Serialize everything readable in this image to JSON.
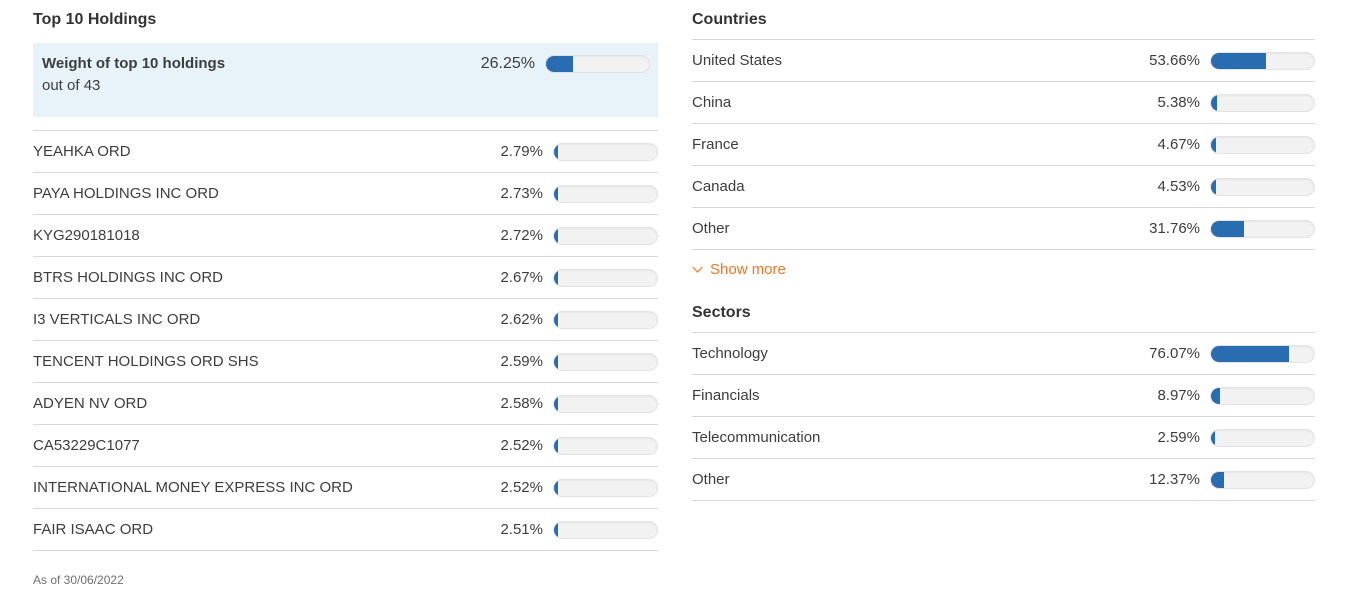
{
  "colors": {
    "bar_fill": "#2a6cb0",
    "bar_track": "#f2f2f2",
    "highlight_bg": "#e7f3f9",
    "link_orange": "#e87722",
    "divider": "#d8d8d8",
    "text_dark": "#3d3d3d"
  },
  "holdings": {
    "title": "Top 10 Holdings",
    "summary": {
      "label": "Weight of top 10 holdings",
      "sublabel": "out of 43",
      "value": "26.25%",
      "pct": 26.25
    },
    "rows": [
      {
        "label": "YEAHKA ORD",
        "value": "2.79%",
        "pct": 2.79
      },
      {
        "label": "PAYA HOLDINGS INC ORD",
        "value": "2.73%",
        "pct": 2.73
      },
      {
        "label": "KYG290181018",
        "value": "2.72%",
        "pct": 2.72
      },
      {
        "label": "BTRS HOLDINGS INC ORD",
        "value": "2.67%",
        "pct": 2.67
      },
      {
        "label": "I3 VERTICALS INC ORD",
        "value": "2.62%",
        "pct": 2.62
      },
      {
        "label": "TENCENT HOLDINGS ORD SHS",
        "value": "2.59%",
        "pct": 2.59
      },
      {
        "label": "ADYEN NV ORD",
        "value": "2.58%",
        "pct": 2.58
      },
      {
        "label": "CA53229C1077",
        "value": "2.52%",
        "pct": 2.52
      },
      {
        "label": "INTERNATIONAL MONEY EXPRESS INC ORD",
        "value": "2.52%",
        "pct": 2.52
      },
      {
        "label": "FAIR ISAAC ORD",
        "value": "2.51%",
        "pct": 2.51
      }
    ],
    "as_of": "As of 30/06/2022"
  },
  "countries": {
    "title": "Countries",
    "rows": [
      {
        "label": "United States",
        "value": "53.66%",
        "pct": 53.66
      },
      {
        "label": "China",
        "value": "5.38%",
        "pct": 5.38
      },
      {
        "label": "France",
        "value": "4.67%",
        "pct": 4.67
      },
      {
        "label": "Canada",
        "value": "4.53%",
        "pct": 4.53
      },
      {
        "label": "Other",
        "value": "31.76%",
        "pct": 31.76
      }
    ],
    "show_more_label": "Show more"
  },
  "sectors": {
    "title": "Sectors",
    "rows": [
      {
        "label": "Technology",
        "value": "76.07%",
        "pct": 76.07
      },
      {
        "label": "Financials",
        "value": "8.97%",
        "pct": 8.97
      },
      {
        "label": "Telecommunication",
        "value": "2.59%",
        "pct": 2.59
      },
      {
        "label": "Other",
        "value": "12.37%",
        "pct": 12.37
      }
    ]
  }
}
